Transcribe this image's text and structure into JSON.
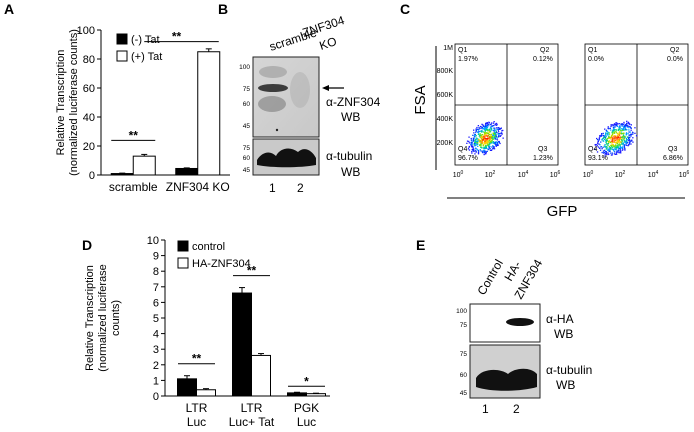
{
  "panels": {
    "A": "A",
    "B": "B",
    "C": "C",
    "D": "D",
    "E": "E"
  },
  "chart_data": [
    {
      "panel": "A",
      "type": "bar",
      "categories": [
        "scramble",
        "ZNF304 KO"
      ],
      "series": [
        {
          "name": "(-) Tat",
          "values": [
            1.0,
            4.5
          ],
          "errors": [
            0.3,
            0.4
          ],
          "color": "#000000"
        },
        {
          "name": "(+) Tat",
          "values": [
            13.0,
            85.0
          ],
          "errors": [
            1.2,
            2.0
          ],
          "color": "#ffffff"
        }
      ],
      "ylabel": [
        "Relative Transcription",
        "(normalized luciferase counts)"
      ],
      "ylim": [
        0,
        100
      ],
      "yticks": [
        0,
        20,
        40,
        60,
        80,
        100
      ],
      "legend": "top-left",
      "significance": [
        {
          "from": "scramble:(-) Tat",
          "to": "scramble:(+) Tat",
          "label": "**"
        },
        {
          "from": "scramble:(+) Tat",
          "to": "ZNF304 KO:(+) Tat",
          "label": "**"
        }
      ]
    },
    {
      "panel": "D",
      "type": "bar",
      "categories": [
        [
          "LTR",
          "Luc"
        ],
        [
          "LTR",
          "Luc+ Tat"
        ],
        [
          "PGK",
          "Luc"
        ]
      ],
      "series": [
        {
          "name": "control",
          "values": [
            1.1,
            6.6,
            0.2
          ],
          "errors": [
            0.2,
            0.35,
            0.04
          ],
          "color": "#000000"
        },
        {
          "name": "HA-ZNF304",
          "values": [
            0.4,
            2.6,
            0.15
          ],
          "errors": [
            0.07,
            0.12,
            0.03
          ],
          "color": "#ffffff"
        }
      ],
      "ylabel": [
        "Relative Transcription",
        "(normalized luciferase",
        "counts)"
      ],
      "ylim": [
        0,
        10
      ],
      "yticks": [
        0,
        1,
        2,
        3,
        4,
        5,
        6,
        7,
        8,
        9,
        10
      ],
      "legend": "top-left",
      "significance": [
        {
          "category": 0,
          "label": "**"
        },
        {
          "category": 1,
          "label": "**"
        },
        {
          "category": 2,
          "label": "*"
        }
      ]
    },
    {
      "panel": "C",
      "type": "scatter",
      "title": "",
      "xlabel": "GFP",
      "ylabel": "FSA",
      "x_scale": "log",
      "xticks": [
        "10^0",
        "10^2",
        "10^4",
        "10^6"
      ],
      "yticks": [
        "200K",
        "400K",
        "600K",
        "800K",
        "1M"
      ],
      "plots": [
        {
          "quadrants": {
            "Q1": "1.97%",
            "Q2": "0.12%",
            "Q3": "1.23%",
            "Q4": "96.7%"
          }
        },
        {
          "quadrants": {
            "Q1": "0.0%",
            "Q2": "0.0%",
            "Q3": "6.86%",
            "Q4": "93.1%"
          }
        }
      ]
    }
  ],
  "blots": {
    "B": {
      "lanes": [
        "scramble",
        [
          "ZNF304",
          "KO"
        ]
      ],
      "lane_numbers": [
        "1",
        "2"
      ],
      "top": {
        "label": "α-ZNF304",
        "sub": "WB",
        "markers": [
          "100",
          "75",
          "60",
          "45"
        ]
      },
      "bottom": {
        "label": "α-tubulin",
        "sub": "WB",
        "markers": [
          "75",
          "60",
          "45"
        ]
      }
    },
    "E": {
      "lanes": [
        "Control",
        [
          "HA-",
          "ZNF304"
        ]
      ],
      "lane_numbers": [
        "1",
        "2"
      ],
      "top": {
        "label": "α-HA",
        "sub": "WB",
        "markers": [
          "100",
          "75"
        ]
      },
      "bottom": {
        "label": "α-tubulin",
        "sub": "WB",
        "markers": [
          "75",
          "60",
          "45"
        ]
      }
    }
  }
}
